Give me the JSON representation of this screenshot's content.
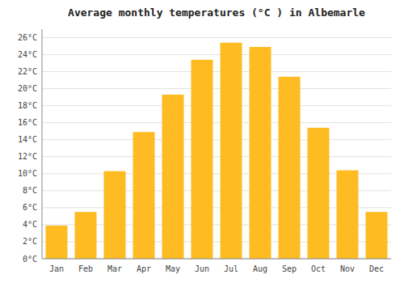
{
  "chart_data": {
    "type": "bar",
    "title": "Average monthly temperatures (°C ) in Albemarle",
    "categories": [
      "Jan",
      "Feb",
      "Mar",
      "Apr",
      "May",
      "Jun",
      "Jul",
      "Aug",
      "Sep",
      "Oct",
      "Nov",
      "Dec"
    ],
    "values": [
      3.9,
      5.5,
      10.3,
      14.9,
      19.3,
      23.4,
      25.4,
      24.9,
      21.4,
      15.4,
      10.4,
      5.5
    ],
    "color": "#FFBB22",
    "ylim": [
      0,
      27
    ],
    "yticks": [
      {
        "value": 0,
        "label": "0°C"
      },
      {
        "value": 2,
        "label": "2°C"
      },
      {
        "value": 4,
        "label": "4°C"
      },
      {
        "value": 6,
        "label": "6°C"
      },
      {
        "value": 8,
        "label": "8°C"
      },
      {
        "value": 10,
        "label": "10°C"
      },
      {
        "value": 12,
        "label": "12°C"
      },
      {
        "value": 14,
        "label": "14°C"
      },
      {
        "value": 16,
        "label": "16°C"
      },
      {
        "value": 18,
        "label": "18°C"
      },
      {
        "value": 20,
        "label": "20°C"
      },
      {
        "value": 22,
        "label": "22°C"
      },
      {
        "value": 24,
        "label": "24°C"
      },
      {
        "value": 26,
        "label": "26°C"
      }
    ],
    "grid": true
  }
}
